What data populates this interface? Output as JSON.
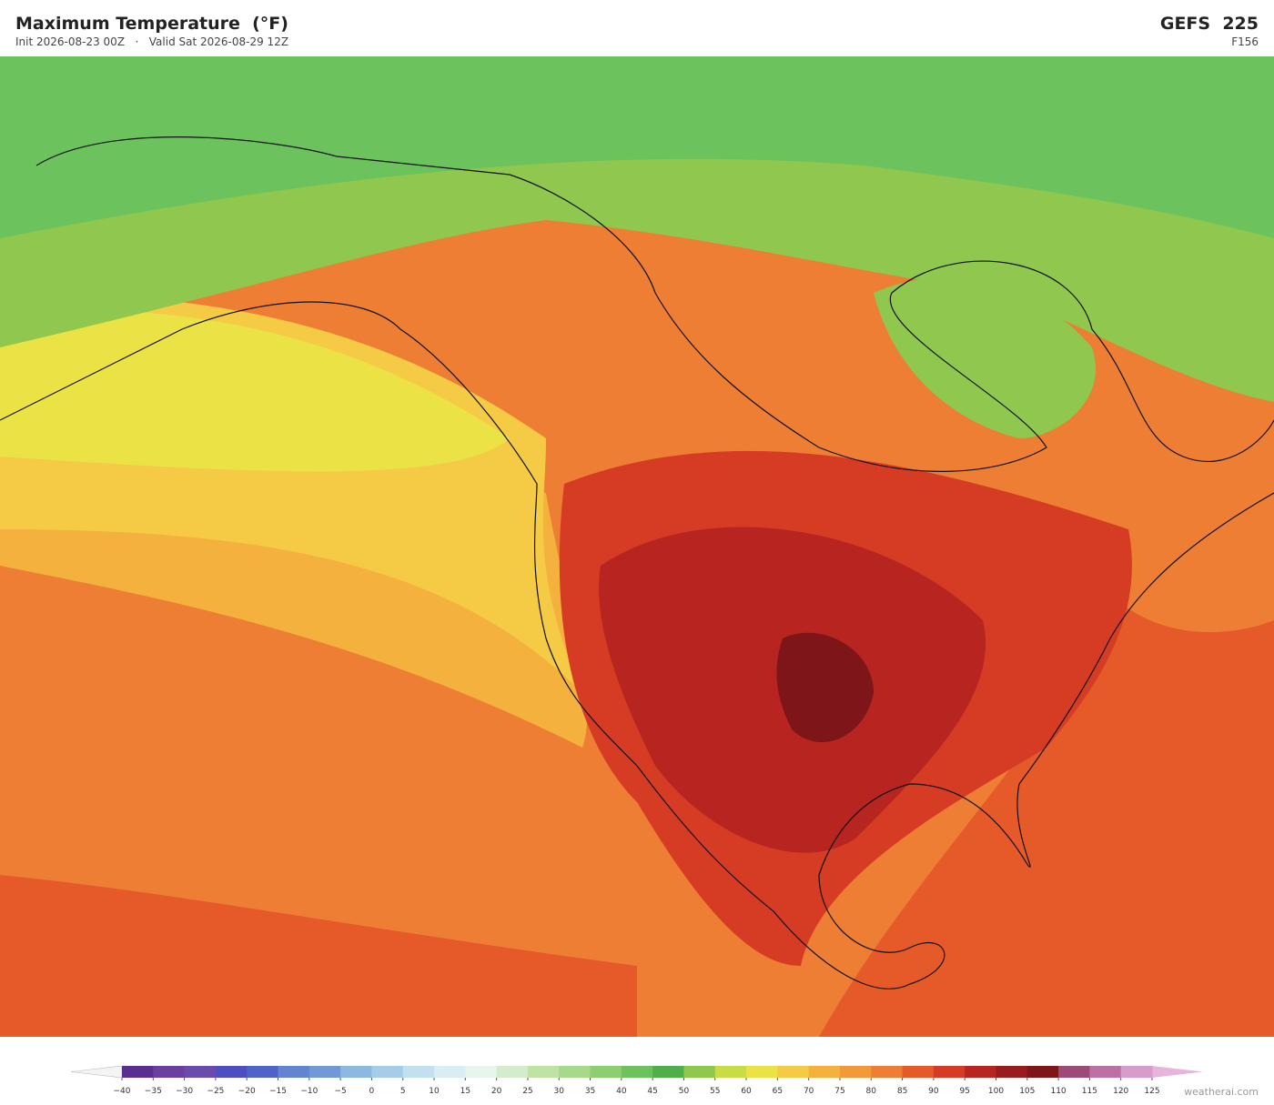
{
  "header": {
    "title": "Maximum Temperature  (°F)",
    "init": "Init 2026-08-23 00Z",
    "separator": "·",
    "valid": "Valid Sat 2026-08-29 12Z",
    "model": "GEFS  225",
    "forecast_hour": "F156"
  },
  "colorbar": {
    "ticks": [
      {
        "value": -40,
        "label": "−40"
      },
      {
        "value": -35,
        "label": "−35"
      },
      {
        "value": -30,
        "label": "−30"
      },
      {
        "value": -25,
        "label": "−25"
      },
      {
        "value": -20,
        "label": "−20"
      },
      {
        "value": -15,
        "label": "−15"
      },
      {
        "value": -10,
        "label": "−10"
      },
      {
        "value": -5,
        "label": "−5"
      },
      0,
      5,
      10,
      15,
      20,
      25,
      30,
      35,
      40,
      45,
      50,
      55,
      60,
      65,
      70,
      75,
      80,
      85,
      90,
      95,
      100,
      105,
      110,
      115,
      120,
      125
    ],
    "colors": [
      "#5a2d91",
      "#6b3fa0",
      "#6a4aad",
      "#4d4fc0",
      "#4f62c8",
      "#6385d0",
      "#7299d6",
      "#8db8df",
      "#a5cde9",
      "#c2e0ee",
      "#d9edf2",
      "#e8f5ec",
      "#d3eccb",
      "#bfe3a5",
      "#a6d98a",
      "#8dcf70",
      "#6cc25c",
      "#4fb04a",
      "#8fc74f",
      "#c8dc46",
      "#ebe345",
      "#f5cb45",
      "#f5b13e",
      "#f29a3a",
      "#ee7e33",
      "#e65a2a",
      "#d63c24",
      "#b82521",
      "#981b1e",
      "#7e1519",
      "#9c4a78",
      "#bd6fa6",
      "#d79ccb"
    ],
    "under_color": "#f4f4f4",
    "over_color": "#e6b4dc"
  },
  "credit": "weatherai.com"
}
